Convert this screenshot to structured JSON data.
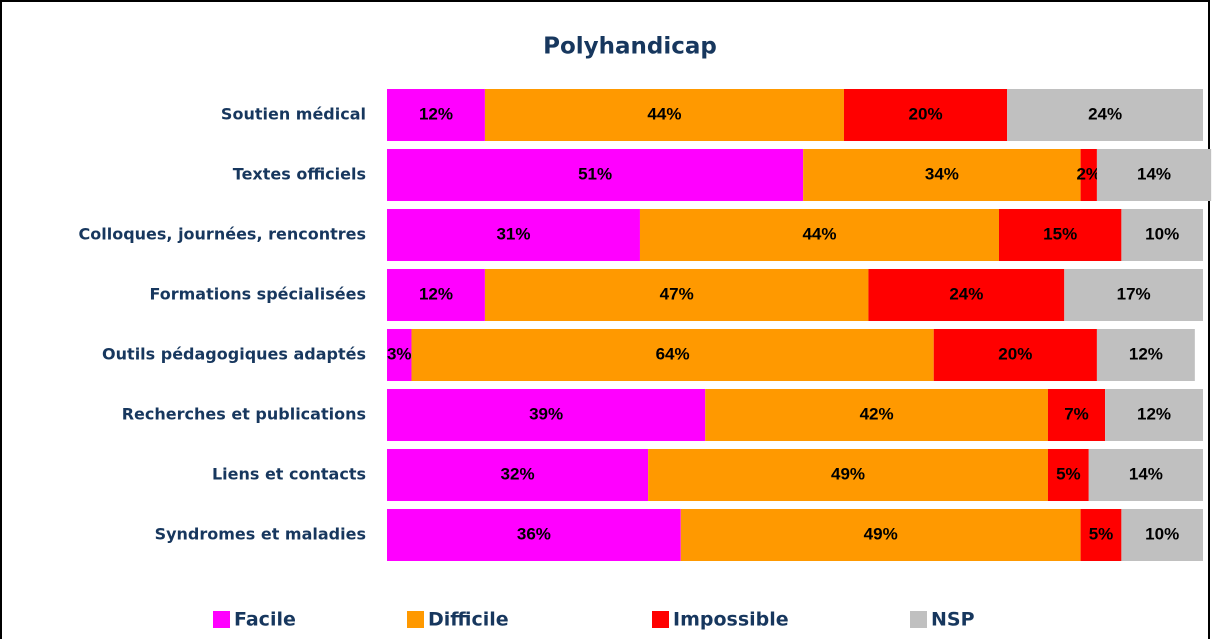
{
  "chart_data": {
    "type": "stacked_bar_horizontal",
    "title": "Polyhandicap",
    "categories": [
      "Soutien médical",
      "Textes officiels",
      "Colloques, journées, rencontres",
      "Formations spécialisées",
      "Outils pédagogiques adaptés",
      "Recherches et publications",
      "Liens et contacts",
      "Syndromes et maladies"
    ],
    "xlim": [
      0,
      100
    ],
    "legend": "bottom",
    "series": [
      {
        "name": "Facile",
        "color": "#ff00ff",
        "values": [
          12,
          51,
          31,
          12,
          3,
          39,
          32,
          36
        ],
        "value_labels": [
          "12%",
          "51%",
          "31%",
          "12%",
          "3%",
          "39%",
          "32%",
          "36%"
        ]
      },
      {
        "name": "Difficile",
        "color": "#ff9900",
        "values": [
          44,
          34,
          44,
          47,
          64,
          42,
          49,
          49
        ],
        "value_labels": [
          "44%",
          "34%",
          "44%",
          "47%",
          "64%",
          "42%",
          "49%",
          "49%"
        ]
      },
      {
        "name": "Impossible",
        "color": "#ff0000",
        "values": [
          20,
          2,
          15,
          24,
          20,
          7,
          5,
          5
        ],
        "value_labels": [
          "20%",
          "2%",
          "15%",
          "24%",
          "20%",
          "7%",
          "5%",
          "5%"
        ]
      },
      {
        "name": "NSP",
        "color": "#c0c0c0",
        "values": [
          24,
          14,
          10,
          17,
          12,
          12,
          14,
          10
        ],
        "value_labels": [
          "24%",
          "14%",
          "10%",
          "17%",
          "12%",
          "12%",
          "14%",
          "10%"
        ]
      }
    ]
  }
}
